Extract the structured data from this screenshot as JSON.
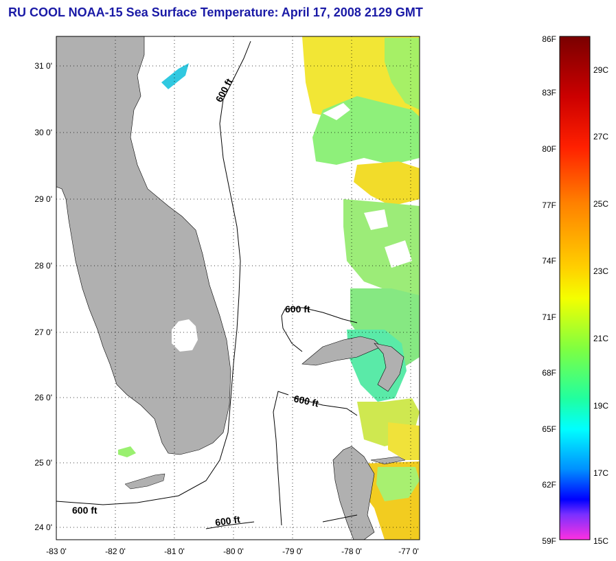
{
  "title": "RU COOL  NOAA-15  Sea Surface Temperature:  April 17, 2008 2129 GMT",
  "map": {
    "lat_labels": [
      "31 0'",
      "30 0'",
      "29 0'",
      "28 0'",
      "27 0'",
      "26 0'",
      "25 0'",
      "24 0'"
    ],
    "lon_labels": [
      "-83 0'",
      "-82 0'",
      "-81 0'",
      "-80 0'",
      "-79 0'",
      "-78 0'",
      "-77 0'"
    ],
    "contour_label": "600 ft",
    "land_color": "#b0b0b0"
  },
  "colorbar": {
    "fahrenheit_labels": [
      "86F",
      "83F",
      "80F",
      "77F",
      "74F",
      "71F",
      "68F",
      "65F",
      "62F",
      "59F"
    ],
    "celsius_labels": [
      "29C",
      "27C",
      "25C",
      "23C",
      "21C",
      "19C",
      "17C",
      "15C"
    ]
  }
}
